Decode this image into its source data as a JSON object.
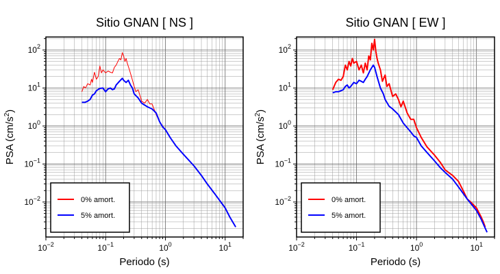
{
  "chart_data": [
    {
      "type": "line",
      "title": "Sitio GNAN [ NS ]",
      "xlabel": "Periodo (s)",
      "ylabel": "PSA (cm/s²)",
      "xscale": "log",
      "yscale": "log",
      "xlim": [
        0.01,
        20
      ],
      "ylim": [
        0.0012,
        220
      ],
      "grid": true,
      "legend_position": "bottom-left",
      "x_tick_labels": [
        {
          "value": 0.01,
          "base": "10",
          "exp": "−2"
        },
        {
          "value": 0.1,
          "base": "10",
          "exp": "−1"
        },
        {
          "value": 1,
          "base": "10",
          "exp": "0"
        },
        {
          "value": 10,
          "base": "10",
          "exp": "1"
        }
      ],
      "y_tick_labels": [
        {
          "value": 0.01,
          "base": "10",
          "exp": "−2"
        },
        {
          "value": 0.1,
          "base": "10",
          "exp": "−1"
        },
        {
          "value": 1,
          "base": "10",
          "exp": "0"
        },
        {
          "value": 10,
          "base": "10",
          "exp": "1"
        },
        {
          "value": 100,
          "base": "10",
          "exp": "2"
        }
      ],
      "series": [
        {
          "name": "0% amort.",
          "color": "#ff0000",
          "width": 1,
          "x": [
            0.04,
            0.043,
            0.046,
            0.05,
            0.055,
            0.058,
            0.06,
            0.065,
            0.07,
            0.075,
            0.08,
            0.085,
            0.09,
            0.1,
            0.11,
            0.12,
            0.13,
            0.14,
            0.15,
            0.16,
            0.17,
            0.18,
            0.19,
            0.2,
            0.21,
            0.22,
            0.23,
            0.25,
            0.27,
            0.3,
            0.32,
            0.35,
            0.38,
            0.4,
            0.45,
            0.5,
            0.55,
            0.6,
            0.7,
            0.8,
            0.9,
            1.0,
            1.2,
            1.5,
            2,
            3,
            4,
            5,
            7,
            10,
            12,
            15
          ],
          "y": [
            8,
            11,
            10,
            13,
            12,
            17,
            14,
            26,
            17,
            20,
            38,
            25,
            30,
            25,
            28,
            26,
            25,
            35,
            40,
            50,
            60,
            55,
            85,
            70,
            50,
            60,
            45,
            30,
            20,
            11,
            8,
            9,
            6,
            4.5,
            4,
            5,
            3.8,
            3.8,
            2,
            1.3,
            1.0,
            0.8,
            0.5,
            0.3,
            0.18,
            0.09,
            0.05,
            0.03,
            0.015,
            0.007,
            0.004,
            0.0022
          ]
        },
        {
          "name": "5% amort.",
          "color": "#0000ff",
          "width": 2,
          "x": [
            0.04,
            0.045,
            0.05,
            0.055,
            0.06,
            0.065,
            0.07,
            0.08,
            0.09,
            0.1,
            0.11,
            0.12,
            0.13,
            0.14,
            0.15,
            0.17,
            0.19,
            0.2,
            0.22,
            0.24,
            0.26,
            0.28,
            0.3,
            0.35,
            0.4,
            0.5,
            0.6,
            0.7,
            0.8,
            0.9,
            1.0,
            1.2,
            1.5,
            2,
            3,
            4,
            5,
            7,
            10,
            12,
            15
          ],
          "y": [
            4.2,
            4.2,
            4.5,
            5.0,
            6.5,
            7.0,
            8.5,
            9.8,
            10,
            8,
            9.5,
            10,
            9,
            9.5,
            12,
            15,
            18,
            16,
            14,
            16,
            12,
            10,
            7,
            5.5,
            4,
            3.2,
            2.8,
            2.2,
            1.3,
            0.95,
            0.8,
            0.5,
            0.3,
            0.18,
            0.09,
            0.05,
            0.03,
            0.015,
            0.007,
            0.004,
            0.0022
          ]
        }
      ]
    },
    {
      "type": "line",
      "title": "Sitio GNAN [ EW ]",
      "xlabel": "Periodo (s)",
      "ylabel": "PSA (cm/s²)",
      "xscale": "log",
      "yscale": "log",
      "xlim": [
        0.01,
        20
      ],
      "ylim": [
        0.0012,
        220
      ],
      "grid": true,
      "legend_position": "bottom-left",
      "x_tick_labels": [
        {
          "value": 0.01,
          "base": "10",
          "exp": "−2"
        },
        {
          "value": 0.1,
          "base": "10",
          "exp": "−1"
        },
        {
          "value": 1,
          "base": "10",
          "exp": "0"
        },
        {
          "value": 10,
          "base": "10",
          "exp": "1"
        }
      ],
      "y_tick_labels": [
        {
          "value": 0.01,
          "base": "10",
          "exp": "−2"
        },
        {
          "value": 0.1,
          "base": "10",
          "exp": "−1"
        },
        {
          "value": 1,
          "base": "10",
          "exp": "0"
        },
        {
          "value": 10,
          "base": "10",
          "exp": "1"
        },
        {
          "value": 100,
          "base": "10",
          "exp": "2"
        }
      ],
      "series": [
        {
          "name": "0% amort.",
          "color": "#ff0000",
          "width": 2,
          "x": [
            0.04,
            0.045,
            0.05,
            0.055,
            0.06,
            0.065,
            0.07,
            0.075,
            0.08,
            0.085,
            0.09,
            0.1,
            0.11,
            0.12,
            0.13,
            0.14,
            0.15,
            0.16,
            0.17,
            0.18,
            0.19,
            0.2,
            0.21,
            0.22,
            0.23,
            0.25,
            0.27,
            0.3,
            0.32,
            0.35,
            0.38,
            0.4,
            0.45,
            0.5,
            0.55,
            0.6,
            0.7,
            0.8,
            0.9,
            1.0,
            1.2,
            1.5,
            2,
            2.5,
            3,
            4,
            5,
            6,
            7,
            8,
            10,
            12,
            13,
            14
          ],
          "y": [
            9,
            14,
            17,
            16,
            20,
            40,
            30,
            50,
            38,
            60,
            45,
            50,
            30,
            40,
            25,
            45,
            30,
            70,
            55,
            150,
            100,
            190,
            90,
            60,
            45,
            30,
            15,
            22,
            11,
            13,
            8,
            6,
            7,
            5,
            3.2,
            4.5,
            2.2,
            1.5,
            1.5,
            0.9,
            0.5,
            0.28,
            0.17,
            0.11,
            0.07,
            0.05,
            0.035,
            0.02,
            0.012,
            0.01,
            0.007,
            0.004,
            0.003,
            0.0022
          ]
        },
        {
          "name": "5% amort.",
          "color": "#0000ff",
          "width": 2,
          "x": [
            0.04,
            0.045,
            0.05,
            0.055,
            0.06,
            0.065,
            0.07,
            0.075,
            0.08,
            0.09,
            0.1,
            0.11,
            0.12,
            0.13,
            0.14,
            0.15,
            0.17,
            0.19,
            0.2,
            0.22,
            0.25,
            0.28,
            0.3,
            0.35,
            0.4,
            0.5,
            0.6,
            0.7,
            0.8,
            0.9,
            1.0,
            1.2,
            1.5,
            2,
            2.5,
            3,
            4,
            5,
            7,
            10,
            12,
            15
          ],
          "y": [
            7.5,
            8,
            8,
            8.5,
            9,
            11,
            12,
            10,
            11,
            14,
            13,
            16,
            15,
            14,
            17,
            20,
            30,
            40,
            35,
            20,
            10,
            7,
            5,
            3.3,
            2.8,
            2,
            1.2,
            0.9,
            0.7,
            0.55,
            0.5,
            0.3,
            0.2,
            0.12,
            0.08,
            0.06,
            0.04,
            0.025,
            0.012,
            0.006,
            0.0035,
            0.0016
          ]
        }
      ]
    }
  ]
}
